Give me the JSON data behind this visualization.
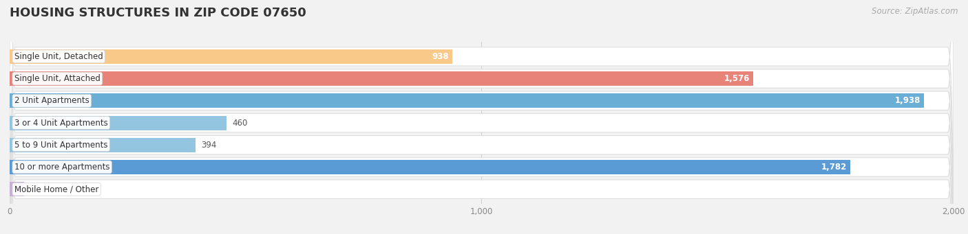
{
  "title": "HOUSING STRUCTURES IN ZIP CODE 07650",
  "source": "Source: ZipAtlas.com",
  "categories": [
    "Single Unit, Detached",
    "Single Unit, Attached",
    "2 Unit Apartments",
    "3 or 4 Unit Apartments",
    "5 to 9 Unit Apartments",
    "10 or more Apartments",
    "Mobile Home / Other"
  ],
  "values": [
    938,
    1576,
    1938,
    460,
    394,
    1782,
    31
  ],
  "bar_colors": [
    "#f9c98a",
    "#e8837a",
    "#6aaed6",
    "#93c4e0",
    "#93c4e0",
    "#5b9bd5",
    "#c9afd4"
  ],
  "background_color": "#f2f2f2",
  "bar_background_color": "#ffffff",
  "bar_border_color": "#dddddd",
  "xlim": [
    0,
    2000
  ],
  "xticks": [
    0,
    1000,
    2000
  ],
  "title_fontsize": 13,
  "label_fontsize": 8.5,
  "value_fontsize": 8.5,
  "source_fontsize": 8.5
}
